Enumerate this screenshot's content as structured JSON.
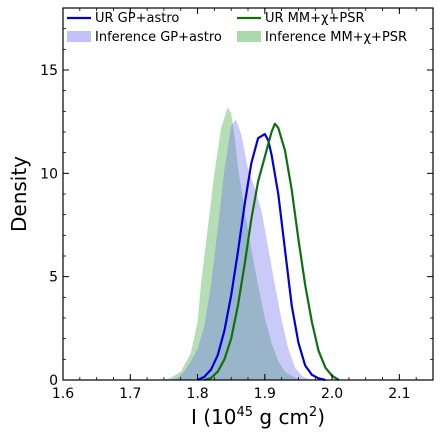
{
  "chart_data": {
    "type": "area",
    "xlabel": "I (10",
    "xlabel_exp": "45",
    "xlabel_rest": " g cm",
    "xlabel_exp2": "2",
    "xlabel_close": ")",
    "ylabel": "Density",
    "xlim": [
      1.6,
      2.15
    ],
    "ylim": [
      0,
      18
    ],
    "xticks": [
      1.6,
      1.7,
      1.8,
      1.9,
      2.0,
      2.1
    ],
    "xtick_labels": [
      "1.6",
      "1.7",
      "1.8",
      "1.9",
      "2.0",
      "2.1"
    ],
    "yticks": [
      0,
      5,
      10,
      15
    ],
    "ytick_labels": [
      "0",
      "5",
      "10",
      "15"
    ],
    "legend_position": "top",
    "series": [
      {
        "name": "Inference MM+χ+PSR",
        "style": "filled",
        "color": "#2ca02c",
        "x": [
          1.75,
          1.76,
          1.775,
          1.79,
          1.8,
          1.805,
          1.815,
          1.825,
          1.835,
          1.845,
          1.85,
          1.855,
          1.86,
          1.87,
          1.88,
          1.89,
          1.9,
          1.91,
          1.92,
          1.93,
          1.94,
          1.95,
          1.96
        ],
        "y": [
          0.0,
          0.1,
          0.4,
          1.3,
          2.8,
          4.6,
          7.3,
          10.0,
          12.2,
          13.2,
          12.9,
          11.8,
          10.3,
          8.2,
          6.3,
          4.6,
          3.0,
          1.8,
          0.9,
          0.4,
          0.2,
          0.05,
          0.0
        ]
      },
      {
        "name": "Inference GP+astro",
        "style": "filled",
        "color": "#6666ee",
        "x": [
          1.76,
          1.77,
          1.78,
          1.79,
          1.8,
          1.81,
          1.82,
          1.83,
          1.84,
          1.85,
          1.857,
          1.865,
          1.875,
          1.885,
          1.895,
          1.905,
          1.915,
          1.925,
          1.935,
          1.945,
          1.955,
          1.965,
          1.975
        ],
        "y": [
          0.0,
          0.1,
          0.4,
          0.9,
          1.5,
          2.6,
          4.6,
          7.3,
          10.2,
          12.3,
          12.6,
          11.9,
          10.2,
          9.3,
          8.2,
          6.4,
          4.6,
          2.9,
          1.5,
          0.6,
          0.2,
          0.05,
          0.0
        ]
      },
      {
        "name": "UR GP+astro",
        "style": "line",
        "color": "#0000dd",
        "x": [
          1.8,
          1.81,
          1.82,
          1.83,
          1.84,
          1.85,
          1.86,
          1.87,
          1.88,
          1.89,
          1.9,
          1.905,
          1.91,
          1.92,
          1.93,
          1.94,
          1.95,
          1.96,
          1.97,
          1.98,
          1.99
        ],
        "y": [
          0.0,
          0.15,
          0.5,
          1.2,
          2.4,
          4.1,
          6.2,
          8.5,
          10.5,
          11.7,
          11.9,
          11.6,
          10.9,
          9.0,
          6.3,
          3.6,
          1.8,
          0.7,
          0.25,
          0.08,
          0.0
        ]
      },
      {
        "name": "UR MM+χ+PSR",
        "style": "line",
        "color": "#107010",
        "x": [
          1.81,
          1.82,
          1.83,
          1.84,
          1.85,
          1.86,
          1.87,
          1.88,
          1.89,
          1.9,
          1.91,
          1.915,
          1.92,
          1.93,
          1.94,
          1.95,
          1.96,
          1.97,
          1.98,
          1.99,
          2.0,
          2.01
        ],
        "y": [
          0.0,
          0.1,
          0.4,
          1.0,
          2.0,
          3.6,
          5.6,
          7.8,
          9.6,
          10.8,
          12.0,
          12.4,
          12.2,
          11.1,
          9.2,
          6.8,
          4.6,
          2.8,
          1.4,
          0.6,
          0.2,
          0.0
        ]
      }
    ],
    "legend": [
      {
        "label": "UR GP+astro",
        "kind": "line",
        "color": "#0000dd"
      },
      {
        "label": "UR MM+χ+PSR",
        "kind": "line",
        "color": "#107010"
      },
      {
        "label": "Inference GP+astro",
        "kind": "patch",
        "color": "#6666ee"
      },
      {
        "label": "Inference MM+χ+PSR",
        "kind": "patch",
        "color": "#2ca02c"
      }
    ]
  }
}
